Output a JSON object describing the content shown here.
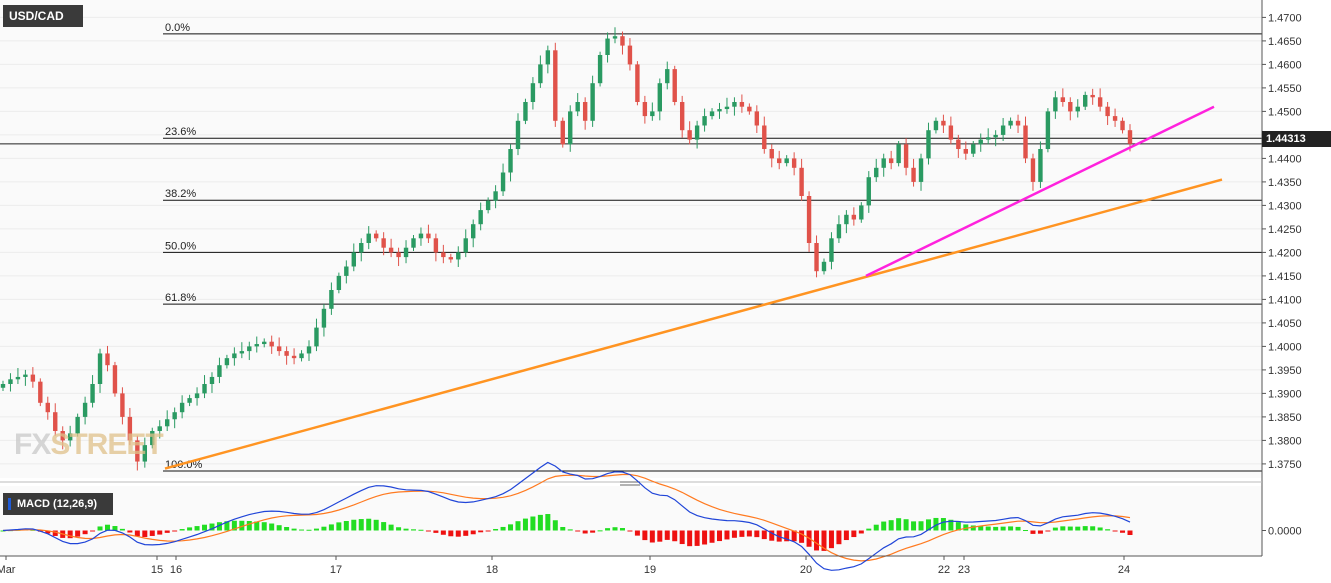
{
  "symbol": "USD/CAD",
  "last_price": "1.44313",
  "watermark": {
    "part1": "FX",
    "part2": "STREET"
  },
  "macd_label": "MACD (12,26,9)",
  "macd_zero_label": "0.0000",
  "colors": {
    "up": "#2a9a62",
    "down": "#e0524a",
    "trend_orange": "#ff9422",
    "trend_magenta": "#ff22dd",
    "macd_line": "#2045d8",
    "signal_line": "#ff7a20",
    "hist_pos": "#22dd22",
    "hist_neg": "#ee1111"
  },
  "chart_data": {
    "type": "candlestick",
    "instrument": "USD/CAD",
    "ylim": [
      1.372,
      1.472
    ],
    "y_ticks": [
      "1.4700",
      "1.4650",
      "1.4600",
      "1.4550",
      "1.4500",
      "1.4450",
      "1.4400",
      "1.4350",
      "1.4300",
      "1.4250",
      "1.4200",
      "1.4150",
      "1.4100",
      "1.4050",
      "1.4000",
      "1.3950",
      "1.3900",
      "1.3850",
      "1.3800",
      "1.3750"
    ],
    "x_labels": [
      "Mar",
      "15",
      "16",
      "17",
      "18",
      "19",
      "20",
      "22",
      "23",
      "24"
    ],
    "fib_levels": [
      {
        "label": "0.0%",
        "price": 1.4665
      },
      {
        "label": "23.6%",
        "price": 1.4443
      },
      {
        "label": "38.2%",
        "price": 1.4311
      },
      {
        "label": "50.0%",
        "price": 1.42
      },
      {
        "label": "61.8%",
        "price": 1.409
      },
      {
        "label": "100.0%",
        "price": 1.3735
      }
    ],
    "trendlines": [
      {
        "name": "orange-support",
        "from": [
          "15-16",
          1.374
        ],
        "to": [
          "24+",
          1.4355
        ]
      },
      {
        "name": "magenta-support",
        "from": [
          "20",
          1.415
        ],
        "to": [
          "24+",
          1.451
        ]
      }
    ],
    "price": [
      1.392,
      1.393,
      1.3935,
      1.394,
      1.3925,
      1.388,
      1.386,
      1.382,
      1.38,
      1.3815,
      1.385,
      1.388,
      1.392,
      1.3985,
      1.396,
      1.39,
      1.385,
      1.38,
      1.3755,
      1.379,
      1.382,
      1.383,
      1.3845,
      1.386,
      1.388,
      1.389,
      1.39,
      1.392,
      1.3935,
      1.396,
      1.3975,
      1.3985,
      1.399,
      1.4,
      1.4005,
      1.401,
      1.4,
      1.399,
      1.398,
      1.3975,
      1.3985,
      1.4,
      1.404,
      1.408,
      1.412,
      1.415,
      1.417,
      1.42,
      1.422,
      1.424,
      1.423,
      1.421,
      1.42,
      1.419,
      1.421,
      1.423,
      1.424,
      1.423,
      1.42,
      1.419,
      1.4185,
      1.42,
      1.423,
      1.426,
      1.429,
      1.431,
      1.433,
      1.437,
      1.442,
      1.448,
      1.452,
      1.456,
      1.46,
      1.463,
      1.448,
      1.443,
      1.45,
      1.452,
      1.448,
      1.456,
      1.462,
      1.4655,
      1.466,
      1.464,
      1.46,
      1.452,
      1.449,
      1.45,
      1.456,
      1.459,
      1.452,
      1.446,
      1.444,
      1.447,
      1.449,
      1.45,
      1.4505,
      1.451,
      1.452,
      1.451,
      1.45,
      1.447,
      1.442,
      1.44,
      1.439,
      1.44,
      1.438,
      1.432,
      1.422,
      1.416,
      1.418,
      1.423,
      1.426,
      1.428,
      1.427,
      1.43,
      1.436,
      1.438,
      1.44,
      1.439,
      1.443,
      1.438,
      1.435,
      1.44,
      1.446,
      1.448,
      1.447,
      1.444,
      1.442,
      1.441,
      1.443,
      1.444,
      1.4445,
      1.445,
      1.447,
      1.448,
      1.447,
      1.44,
      1.435,
      1.442,
      1.45,
      1.453,
      1.452,
      1.45,
      1.451,
      1.4535,
      1.453,
      1.451,
      1.449,
      1.448,
      1.446,
      1.4431
    ],
    "macd": {
      "params": "12,26,9",
      "ylim": [
        -0.0045,
        0.0075
      ],
      "zero_label": "0.0000"
    }
  }
}
